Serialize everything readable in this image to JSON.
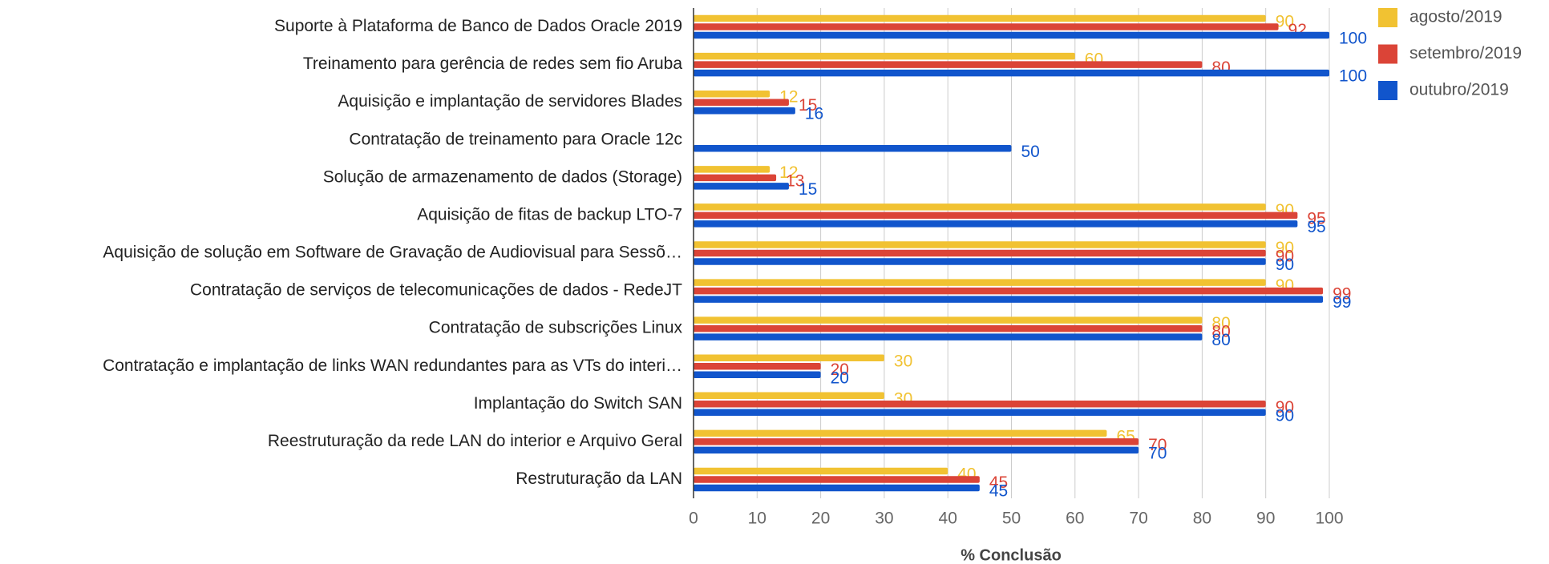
{
  "chart_data": {
    "type": "bar",
    "orientation": "horizontal",
    "x_label": "% Conclusão",
    "categories": [
      "Suporte à Plataforma de Banco de Dados Oracle 2019",
      "Treinamento para gerência de redes sem fio Aruba",
      "Aquisição e implantação de servidores Blades",
      "Contratação de treinamento para Oracle 12c",
      "Solução de armazenamento de dados (Storage)",
      "Aquisição de fitas de backup LTO-7",
      "Aquisição de solução em Software de Gravação de Audiovisual para Sessõ…",
      "Contratação de serviços de telecomunicações de dados - RedeJT",
      "Contratação de subscrições Linux",
      "Contratação e implantação de links WAN redundantes para as VTs do interi…",
      "Implantação do Switch SAN",
      "Reestruturação da rede LAN do interior e Arquivo Geral",
      "Restruturação da LAN"
    ],
    "series": [
      {
        "name": "agosto/2019",
        "color": "#f1c232",
        "values": [
          90,
          60,
          12,
          null,
          12,
          90,
          90,
          90,
          80,
          30,
          30,
          65,
          40
        ]
      },
      {
        "name": "setembro/2019",
        "color": "#db4437",
        "values": [
          92,
          80,
          15,
          null,
          13,
          95,
          90,
          99,
          80,
          20,
          90,
          70,
          45
        ]
      },
      {
        "name": "outubro/2019",
        "color": "#1155cc",
        "values": [
          100,
          100,
          16,
          50,
          15,
          95,
          90,
          99,
          80,
          20,
          90,
          70,
          45
        ]
      }
    ],
    "xlim": [
      0,
      100
    ],
    "xticks": [
      0,
      10,
      20,
      30,
      40,
      50,
      60,
      70,
      80,
      90,
      100
    ],
    "grid": true,
    "legend": "top-right"
  }
}
